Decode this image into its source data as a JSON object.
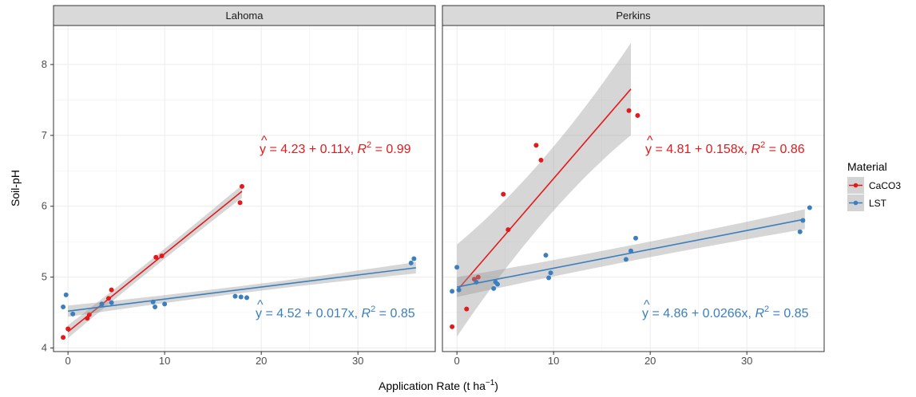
{
  "chart_data": {
    "type": "scatter",
    "xlabel": "Application Rate  (t ha",
    "xlabel_sup": "−1",
    "xlabel_close": ")",
    "ylabel": "Soil-pH",
    "xlim": [
      -1.5,
      38
    ],
    "ylim": [
      3.95,
      8.55
    ],
    "xticks": [
      0,
      10,
      20,
      30
    ],
    "yticks": [
      4,
      5,
      6,
      7,
      8
    ],
    "grid": true,
    "legend": {
      "title": "Material",
      "position": "right",
      "entries": [
        {
          "name": "CaCO3",
          "color": "#e31a1c"
        },
        {
          "name": "LST",
          "color": "#3b7fbe"
        }
      ]
    },
    "panels": [
      {
        "title": "Lahoma",
        "series": [
          {
            "name": "CaCO3",
            "color": "#e31a1c",
            "points": [
              [
                -0.5,
                4.15
              ],
              [
                0,
                4.27
              ],
              [
                2,
                4.42
              ],
              [
                2.2,
                4.47
              ],
              [
                3.5,
                4.62
              ],
              [
                4.2,
                4.7
              ],
              [
                4.5,
                4.82
              ],
              [
                9.1,
                5.28
              ],
              [
                9.7,
                5.3
              ],
              [
                17.8,
                6.05
              ],
              [
                18,
                6.28
              ]
            ],
            "fit": {
              "intercept": 4.23,
              "slope": 0.11,
              "x_range": [
                0,
                18
              ],
              "ci_start": 0.07,
              "ci_end": 0.09
            },
            "equation": {
              "hat": "^",
              "prefix": "y = 4.23 + 0.11x, ",
              "r": "R",
              "sup": "2",
              "suffix": " = 0.99"
            }
          },
          {
            "name": "LST",
            "color": "#3b7fbe",
            "points": [
              [
                -0.5,
                4.58
              ],
              [
                -0.2,
                4.75
              ],
              [
                0.5,
                4.48
              ],
              [
                3.5,
                4.62
              ],
              [
                4.5,
                4.64
              ],
              [
                8.8,
                4.65
              ],
              [
                9,
                4.58
              ],
              [
                10,
                4.62
              ],
              [
                17.3,
                4.73
              ],
              [
                17.9,
                4.72
              ],
              [
                18.5,
                4.71
              ],
              [
                35.5,
                5.2
              ],
              [
                35.8,
                5.26
              ]
            ],
            "fit": {
              "intercept": 4.52,
              "slope": 0.017,
              "x_range": [
                0,
                36
              ],
              "ci_start": 0.05,
              "ci_end": 0.08
            },
            "equation": {
              "hat": "^",
              "prefix": "y = 4.52 + 0.017x, ",
              "r": "R",
              "sup": "2",
              "suffix": " = 0.85"
            }
          }
        ]
      },
      {
        "title": "Perkins",
        "series": [
          {
            "name": "CaCO3",
            "color": "#e31a1c",
            "points": [
              [
                -0.5,
                4.3
              ],
              [
                1,
                4.55
              ],
              [
                1.8,
                4.97
              ],
              [
                2.2,
                5.0
              ],
              [
                4.8,
                6.17
              ],
              [
                5.3,
                5.67
              ],
              [
                8.2,
                6.86
              ],
              [
                8.7,
                6.65
              ],
              [
                17.8,
                7.35
              ],
              [
                18.7,
                7.28
              ]
            ],
            "fit": {
              "intercept": 4.81,
              "slope": 0.158,
              "x_range": [
                0,
                18
              ],
              "ci_start": 0.45,
              "ci_end": 0.65
            },
            "equation": {
              "hat": "^",
              "prefix": "y = 4.81 + 0.158x, ",
              "r": "R",
              "sup": "2",
              "suffix": " = 0.86"
            }
          },
          {
            "name": "LST",
            "color": "#3b7fbe",
            "points": [
              [
                -0.5,
                4.8
              ],
              [
                0,
                5.14
              ],
              [
                0.2,
                4.82
              ],
              [
                2,
                4.93
              ],
              [
                3.8,
                4.84
              ],
              [
                4,
                4.93
              ],
              [
                4.2,
                4.9
              ],
              [
                9.2,
                5.31
              ],
              [
                9.5,
                4.99
              ],
              [
                9.7,
                5.06
              ],
              [
                17.5,
                5.25
              ],
              [
                18,
                5.37
              ],
              [
                18.5,
                5.55
              ],
              [
                35.5,
                5.64
              ],
              [
                35.8,
                5.8
              ],
              [
                36.5,
                5.98
              ]
            ],
            "fit": {
              "intercept": 4.86,
              "slope": 0.0266,
              "x_range": [
                0,
                36
              ],
              "ci_start": 0.11,
              "ci_end": 0.14
            },
            "equation": {
              "hat": "^",
              "prefix": "y = 4.86 + 0.0266x, ",
              "r": "R",
              "sup": "2",
              "suffix": " = 0.85"
            }
          }
        ]
      }
    ]
  }
}
